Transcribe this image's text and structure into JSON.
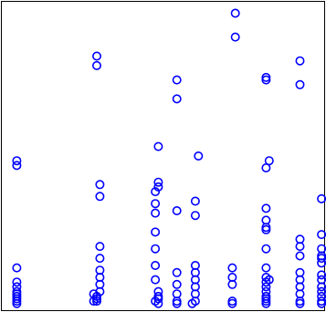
{
  "chart_data": {
    "type": "scatter",
    "title": "",
    "xlabel": "",
    "ylabel": "",
    "xlim": [
      0.5,
      11
    ],
    "ylim": [
      -0.5,
      12.5
    ],
    "grid": false,
    "legend": "none",
    "marker": "open-circle",
    "color": "#0000ff",
    "series": [
      {
        "points": [
          [
            1,
            5.8
          ],
          [
            1,
            5.6
          ],
          [
            1,
            1.3
          ],
          [
            1,
            0.7
          ],
          [
            1,
            0.5
          ],
          [
            1,
            0.3
          ],
          [
            1,
            0.2
          ],
          [
            1,
            0.1
          ],
          [
            1,
            0
          ],
          [
            1,
            -0.1
          ],
          [
            1,
            -0.2
          ],
          [
            3.6,
            10.2
          ],
          [
            3.6,
            9.8
          ],
          [
            3.7,
            4.8
          ],
          [
            3.7,
            4.3
          ],
          [
            3.7,
            2.2
          ],
          [
            3.7,
            1.7
          ],
          [
            3.7,
            1.2
          ],
          [
            3.7,
            0.9
          ],
          [
            3.7,
            0.6
          ],
          [
            3.7,
            0.3
          ],
          [
            3.6,
            0.1
          ],
          [
            3.6,
            -0.1
          ],
          [
            3.5,
            0.2
          ],
          [
            3.6,
            0
          ],
          [
            3.5,
            -0.1
          ],
          [
            5.5,
            4.5
          ],
          [
            5.6,
            4.7
          ],
          [
            5.5,
            4.0
          ],
          [
            5.6,
            4.9
          ],
          [
            5.6,
            6.4
          ],
          [
            5.5,
            3.6
          ],
          [
            5.5,
            2.8
          ],
          [
            5.5,
            2.1
          ],
          [
            5.5,
            1.4
          ],
          [
            5.5,
            0.8
          ],
          [
            5.6,
            0.3
          ],
          [
            5.6,
            0
          ],
          [
            5.5,
            -0.1
          ],
          [
            5.6,
            -0.2
          ],
          [
            5.6,
            0.1
          ],
          [
            6.2,
            9.2
          ],
          [
            6.2,
            8.4
          ],
          [
            6.2,
            3.7
          ],
          [
            6.2,
            1.1
          ],
          [
            6.2,
            0.6
          ],
          [
            6.2,
            0.2
          ],
          [
            6.2,
            -0.1
          ],
          [
            6.2,
            -0.2
          ],
          [
            6.9,
            6.0
          ],
          [
            6.8,
            4.1
          ],
          [
            6.8,
            3.5
          ],
          [
            6.8,
            1.4
          ],
          [
            6.8,
            1.1
          ],
          [
            6.8,
            0.8
          ],
          [
            6.8,
            0.5
          ],
          [
            6.8,
            0.2
          ],
          [
            6.8,
            -0.1
          ],
          [
            6.7,
            -0.2
          ],
          [
            8.1,
            12.0
          ],
          [
            8.1,
            11.0
          ],
          [
            8.0,
            1.3
          ],
          [
            8.0,
            0.9
          ],
          [
            8.0,
            0.6
          ],
          [
            8.0,
            -0.1
          ],
          [
            8.0,
            -0.2
          ],
          [
            9.1,
            9.3
          ],
          [
            9.1,
            9.2
          ],
          [
            9.2,
            5.8
          ],
          [
            9.1,
            5.5
          ],
          [
            9.1,
            3.8
          ],
          [
            9.1,
            3.3
          ],
          [
            9.1,
            3.0
          ],
          [
            9.1,
            2.9
          ],
          [
            9.1,
            2.1
          ],
          [
            9.1,
            1.3
          ],
          [
            9.1,
            0.9
          ],
          [
            9.1,
            0.7
          ],
          [
            9.1,
            0.5
          ],
          [
            9.1,
            0.3
          ],
          [
            9.1,
            0.1
          ],
          [
            9.1,
            0
          ],
          [
            9.1,
            -0.1
          ],
          [
            9.1,
            -0.2
          ],
          [
            9.2,
            0.8
          ],
          [
            10.2,
            10.0
          ],
          [
            10.2,
            9.0
          ],
          [
            10.2,
            2.5
          ],
          [
            10.2,
            2.2
          ],
          [
            10.2,
            1.8
          ],
          [
            10.2,
            1.1
          ],
          [
            10.2,
            0.8
          ],
          [
            10.2,
            0.5
          ],
          [
            10.2,
            0.2
          ],
          [
            10.2,
            -0.1
          ],
          [
            10.2,
            -0.2
          ],
          [
            10.9,
            4.2
          ],
          [
            10.9,
            2.7
          ],
          [
            10.9,
            2.1
          ],
          [
            10.9,
            1.8
          ],
          [
            10.9,
            1.7
          ],
          [
            10.9,
            1.5
          ],
          [
            10.9,
            1.0
          ],
          [
            10.9,
            0.8
          ],
          [
            10.9,
            0.5
          ],
          [
            10.9,
            0.3
          ],
          [
            10.9,
            0.1
          ],
          [
            10.9,
            -0.1
          ],
          [
            10.9,
            -0.2
          ]
        ]
      }
    ]
  }
}
